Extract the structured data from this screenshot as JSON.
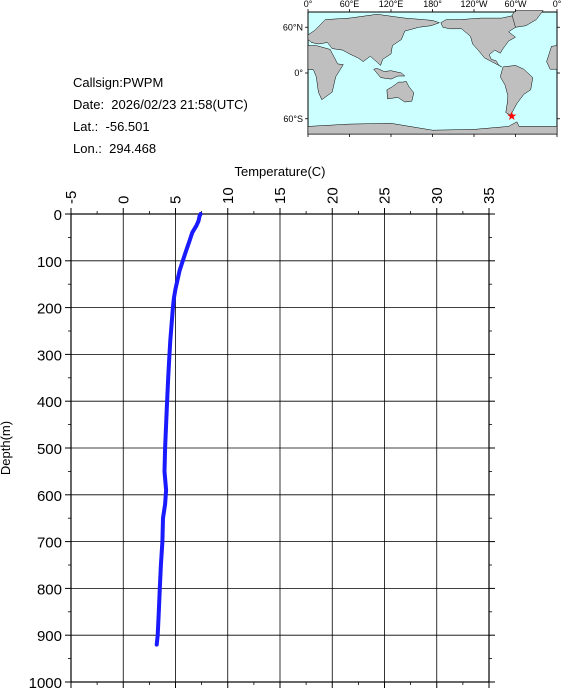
{
  "info": {
    "callsign": "Callsign:PWPM",
    "date": "Date:  2026/02/23 21:58(UTC)",
    "lat": "Lat.:  -56.501",
    "lon": "Lon.:  294.468"
  },
  "map": {
    "lon_labels": [
      "0°",
      "60°E",
      "120°E",
      "180°",
      "120°W",
      "60°W",
      "0°"
    ],
    "lat_labels": [
      "60°N",
      "0°",
      "60°S"
    ],
    "marker": {
      "lon": 294.468,
      "lat": -56.501
    },
    "colors": {
      "ocean": "#ccffff",
      "land": "#bfbfbf",
      "marker": "#ff0000"
    }
  },
  "chart_data": {
    "type": "line",
    "xlabel": "Temperature(C)",
    "ylabel": "Depth(m)",
    "xlim": [
      -5,
      35
    ],
    "ylim": [
      1000,
      0
    ],
    "x_ticks": [
      "-5",
      "0",
      "5",
      "10",
      "15",
      "20",
      "25",
      "30",
      "35"
    ],
    "y_ticks": [
      "0",
      "100",
      "200",
      "300",
      "400",
      "500",
      "600",
      "700",
      "800",
      "900",
      "1000"
    ],
    "grid": true,
    "series": [
      {
        "color": "#1a1aff",
        "points": [
          [
            7.4,
            0
          ],
          [
            7.3,
            5
          ],
          [
            7.2,
            15
          ],
          [
            7.0,
            25
          ],
          [
            6.6,
            40
          ],
          [
            6.3,
            60
          ],
          [
            6.0,
            80
          ],
          [
            5.7,
            100
          ],
          [
            5.4,
            120
          ],
          [
            5.2,
            140
          ],
          [
            5.0,
            160
          ],
          [
            4.85,
            180
          ],
          [
            4.75,
            200
          ],
          [
            4.65,
            230
          ],
          [
            4.5,
            270
          ],
          [
            4.4,
            310
          ],
          [
            4.3,
            350
          ],
          [
            4.2,
            400
          ],
          [
            4.1,
            450
          ],
          [
            4.0,
            500
          ],
          [
            3.95,
            550
          ],
          [
            4.1,
            590
          ],
          [
            4.0,
            620
          ],
          [
            3.8,
            650
          ],
          [
            3.75,
            700
          ],
          [
            3.6,
            750
          ],
          [
            3.5,
            800
          ],
          [
            3.4,
            850
          ],
          [
            3.3,
            900
          ],
          [
            3.2,
            920
          ]
        ]
      }
    ]
  }
}
